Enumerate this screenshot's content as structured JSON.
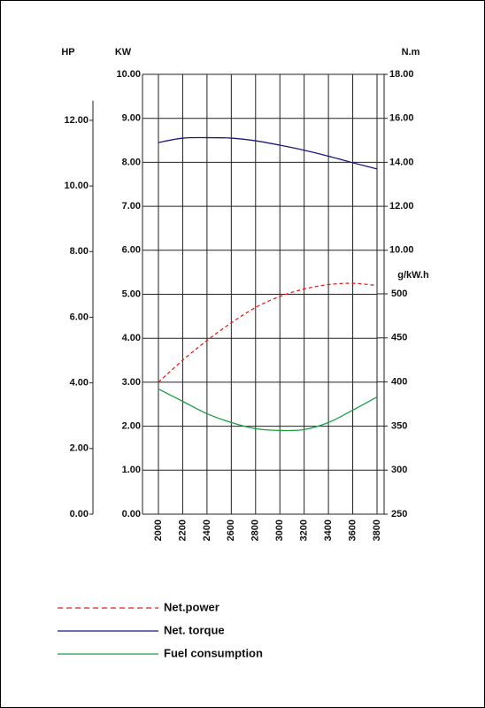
{
  "chart_data": {
    "type": "line",
    "x": [
      2000,
      2200,
      2400,
      2600,
      2800,
      3000,
      3200,
      3400,
      3600,
      3800
    ],
    "x_ticks": [
      "2000",
      "2200",
      "2400",
      "2600",
      "2800",
      "3000",
      "3200",
      "3400",
      "3600",
      "3800"
    ],
    "xlim": [
      2000,
      3800
    ],
    "axes": {
      "hp": {
        "label": "HP",
        "ylim": [
          0,
          13.4
        ],
        "ticks": [
          "0.00",
          "2.00",
          "4.00",
          "6.00",
          "8.00",
          "10.00",
          "12.00"
        ],
        "tick_values": [
          0,
          2,
          4,
          6,
          8,
          10,
          12
        ]
      },
      "kw": {
        "label": "KW",
        "ylim": [
          0,
          10
        ],
        "ticks": [
          "0.00",
          "1.00",
          "2.00",
          "3.00",
          "4.00",
          "5.00",
          "6.00",
          "7.00",
          "8.00",
          "9.00",
          "10.00"
        ],
        "tick_values": [
          0,
          1,
          2,
          3,
          4,
          5,
          6,
          7,
          8,
          9,
          10
        ]
      },
      "nm": {
        "label": "N.m",
        "ylim": [
          10,
          18
        ],
        "ticks": [
          "10.00",
          "12.00",
          "14.00",
          "16.00",
          "18.00"
        ],
        "tick_values": [
          10,
          12,
          14,
          16,
          18
        ]
      },
      "gkwh": {
        "label": "g/kW.h",
        "ylim": [
          250,
          500
        ],
        "ticks": [
          "250",
          "300",
          "350",
          "400",
          "450",
          "500"
        ],
        "tick_values": [
          250,
          300,
          350,
          400,
          450,
          500
        ]
      }
    },
    "series": [
      {
        "name": "Net.power",
        "axis": "kw",
        "color": "#e8201e",
        "dashed": true,
        "x": [
          2000,
          2200,
          2400,
          2600,
          2800,
          3000,
          3200,
          3400,
          3600,
          3800
        ],
        "values": [
          3.0,
          3.5,
          3.95,
          4.35,
          4.7,
          4.95,
          5.12,
          5.22,
          5.25,
          5.2
        ]
      },
      {
        "name": "Net. torque",
        "axis": "nm",
        "color": "#1a1a7a",
        "dashed": false,
        "x": [
          2000,
          2200,
          2400,
          2600,
          2800,
          3000,
          3200,
          3400,
          3600,
          3800
        ],
        "values": [
          14.9,
          15.1,
          15.12,
          15.1,
          14.98,
          14.78,
          14.55,
          14.28,
          13.98,
          13.7
        ]
      },
      {
        "name": "Fuel consumption",
        "axis": "gkwh",
        "color": "#1aa043",
        "dashed": false,
        "x": [
          2000,
          2200,
          2400,
          2600,
          2800,
          3000,
          3200,
          3400,
          3600,
          3800
        ],
        "values": [
          392,
          378,
          364,
          354,
          347,
          345,
          346,
          354,
          368,
          383
        ]
      }
    ],
    "grid": true,
    "legend_position": "bottom-left"
  }
}
